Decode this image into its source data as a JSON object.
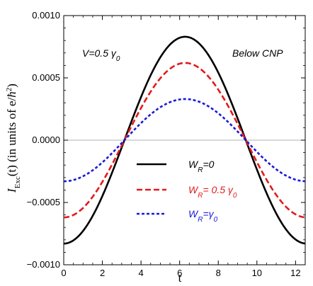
{
  "chart_data": {
    "type": "line",
    "xlabel": "t",
    "ylabel": "I_Exc(t) (in units of e/ħ²)",
    "ylabel_parts": {
      "symbol": "I",
      "subscript": "Exc",
      "middle": "(t) (in units of e/",
      "hbar": "ħ",
      "sup": "2",
      "close": ")"
    },
    "xlim": [
      0,
      12.5
    ],
    "ylim": [
      -0.001,
      0.001
    ],
    "x_ticks": [
      0,
      2,
      4,
      6,
      8,
      10,
      12
    ],
    "x_tick_labels": [
      "0",
      "2",
      "4",
      "6",
      "8",
      "10",
      "12"
    ],
    "y_ticks": [
      -0.001,
      -0.0005,
      0.0,
      0.0005,
      0.001
    ],
    "y_tick_labels": [
      "−0.0010",
      "−0.0005",
      "0.0000",
      "0.0005",
      "0.0010"
    ],
    "zero_line": true,
    "grid": false,
    "legend_placement": "center",
    "annotations": [
      {
        "id": "voltage",
        "text": "V=0.5 γ",
        "sub": "0",
        "placement": "top-left"
      },
      {
        "id": "regime",
        "text": "Below  CNP",
        "placement": "top-right"
      }
    ],
    "series": [
      {
        "name": "W_R=0",
        "label_main": "W",
        "label_sub": "R",
        "label_rest": "=0",
        "color": "#000000",
        "dash": "solid",
        "amplitude": 0.00083,
        "period": 12.566
      },
      {
        "name": "W_R=0.5 γ_0",
        "label_main": "W",
        "label_sub": "R",
        "label_rest": "= 0.5 γ",
        "label_rest_sub": "0",
        "color": "#e31a1c",
        "dash": "dashed",
        "amplitude": 0.00062,
        "period": 12.566
      },
      {
        "name": "W_R=γ_0",
        "label_main": "W",
        "label_sub": "R",
        "label_rest": "=γ",
        "label_rest_sub": "0",
        "color": "#1a1ad6",
        "dash": "dotted",
        "amplitude": 0.00033,
        "period": 12.566
      }
    ],
    "curve_formula": "y = -amplitude * cos(2*pi*t/period)"
  }
}
